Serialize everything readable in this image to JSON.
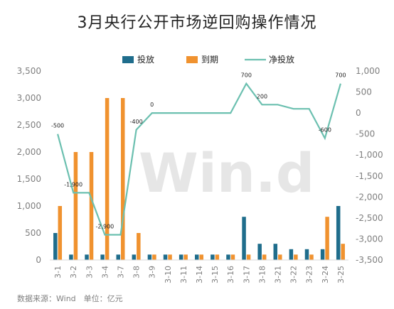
{
  "title": "3月央行公开市场逆回购操作情况",
  "watermark": "Win.d",
  "source_note": "数据来源：Wind　单位：亿元",
  "colors": {
    "inject": "#1f6d8c",
    "expire": "#f0922f",
    "net": "#6cc0b0",
    "axis_text": "#7f7f7f",
    "grid": "#d9d9d9"
  },
  "chart_data": {
    "type": "bar",
    "categories": [
      "3-1",
      "3-2",
      "3-3",
      "3-4",
      "3-7",
      "3-8",
      "3-9",
      "3-10",
      "3-11",
      "3-14",
      "3-15",
      "3-16",
      "3-17",
      "3-18",
      "3-21",
      "3-22",
      "3-23",
      "3-24",
      "3-25"
    ],
    "series": [
      {
        "name": "投放",
        "type": "bar",
        "axis": "left",
        "values": [
          500,
          100,
          100,
          100,
          100,
          100,
          100,
          100,
          100,
          100,
          100,
          100,
          800,
          300,
          300,
          200,
          200,
          200,
          1000
        ]
      },
      {
        "name": "到期",
        "type": "bar",
        "axis": "left",
        "values": [
          1000,
          2000,
          2000,
          3000,
          3000,
          500,
          100,
          100,
          100,
          100,
          100,
          100,
          100,
          100,
          100,
          100,
          100,
          800,
          300
        ]
      },
      {
        "name": "净投放",
        "type": "line",
        "axis": "right",
        "values": [
          -500,
          -1900,
          -1900,
          -2900,
          -2900,
          -400,
          0,
          0,
          0,
          0,
          0,
          0,
          700,
          200,
          200,
          100,
          100,
          -600,
          700
        ]
      }
    ],
    "data_labels": [
      {
        "index": 0,
        "text": "-500"
      },
      {
        "index": 1,
        "text": "-1,900"
      },
      {
        "index": 3,
        "text": "-2,900"
      },
      {
        "index": 5,
        "text": "-400"
      },
      {
        "index": 6,
        "text": "0"
      },
      {
        "index": 12,
        "text": "700"
      },
      {
        "index": 13,
        "text": "200"
      },
      {
        "index": 17,
        "text": "-600"
      },
      {
        "index": 18,
        "text": "700"
      }
    ],
    "y_left": {
      "ylim": [
        0,
        3500
      ],
      "ticks": [
        0,
        500,
        1000,
        1500,
        2000,
        2500,
        3000,
        3500
      ],
      "tick_labels": [
        "0",
        "500",
        "1,000",
        "1,500",
        "2,000",
        "2,500",
        "3,000",
        "3,500"
      ]
    },
    "y_right": {
      "ylim": [
        -3500,
        1000
      ],
      "ticks": [
        -3500,
        -3000,
        -2500,
        -2000,
        -1500,
        -1000,
        -500,
        0,
        500,
        1000
      ],
      "tick_labels": [
        "-3,500",
        "-3,000",
        "-2,500",
        "-2,000",
        "-1,500",
        "-1,000",
        "-500",
        "0",
        "500",
        "1,000"
      ]
    },
    "grid": false,
    "legend_position": "top"
  }
}
